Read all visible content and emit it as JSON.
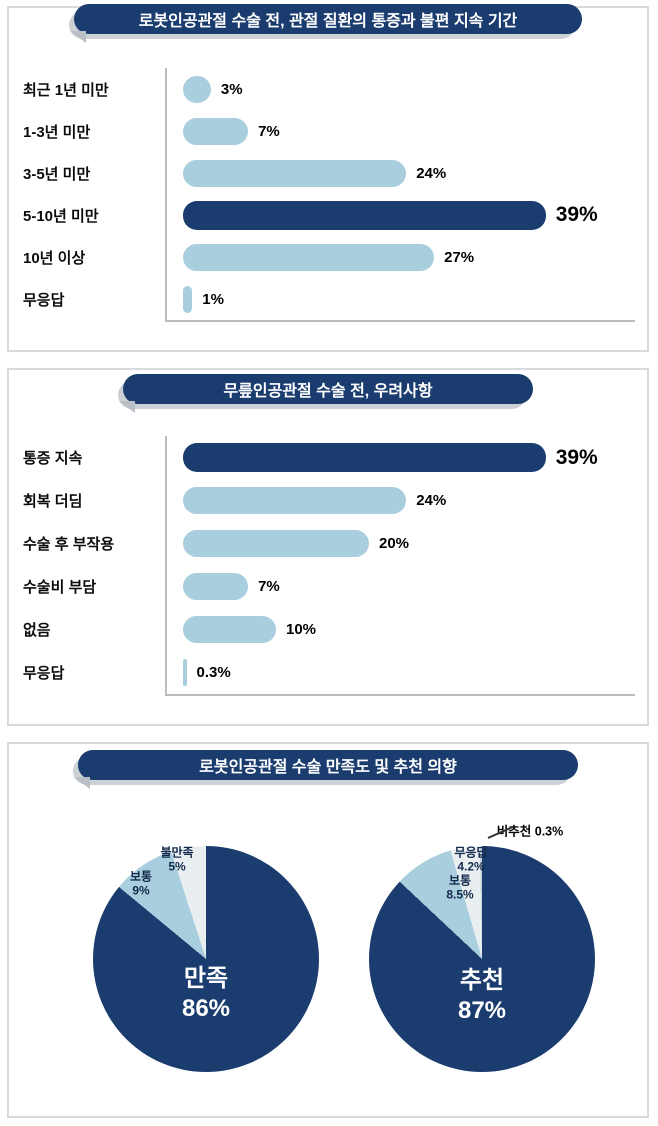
{
  "colors": {
    "navy": "#1b3c6e",
    "light_blue": "#a9cedd",
    "pale": "#e9eef1",
    "sliver": "#c9d4db",
    "axis": "#b7bcc1",
    "banner_shadow": "#ccd1d6"
  },
  "chart_data": [
    {
      "type": "bar",
      "orientation": "horizontal",
      "title": "로봇인공관절 수술 전, 관절 질환의 통증과 불편 지속 기간",
      "categories": [
        "최근 1년 미만",
        "1-3년 미만",
        "3-5년 미만",
        "5-10년 미만",
        "10년 이상",
        "무응답"
      ],
      "values": [
        3,
        7,
        24,
        39,
        27,
        1
      ],
      "value_labels": [
        "3%",
        "7%",
        "24%",
        "39%",
        "27%",
        "1%"
      ],
      "highlight_index": 3,
      "unit": "%",
      "xlim": [
        0,
        42
      ],
      "grid": false,
      "legend": false
    },
    {
      "type": "bar",
      "orientation": "horizontal",
      "title": "무릎인공관절 수술 전, 우려사항",
      "categories": [
        "통증 지속",
        "회복 더딤",
        "수술 후 부작용",
        "수술비 부담",
        "없음",
        "무응답"
      ],
      "values": [
        39,
        24,
        20,
        7,
        10,
        0.3
      ],
      "value_labels": [
        "39%",
        "24%",
        "20%",
        "7%",
        "10%",
        "0.3%"
      ],
      "highlight_index": 0,
      "unit": "%",
      "xlim": [
        0,
        42
      ],
      "grid": false,
      "legend": false
    },
    {
      "type": "pie",
      "title": "로봇인공관절 수술 만족도 및 추천 의향",
      "pies": [
        {
          "name": "만족도",
          "slices": [
            {
              "label": "만족",
              "value": 86,
              "pct_label": "86%",
              "color_key": "navy"
            },
            {
              "label": "보통",
              "value": 9,
              "pct_label": "9%",
              "color_key": "light_blue"
            },
            {
              "label": "불만족",
              "value": 5,
              "pct_label": "5%",
              "color_key": "pale"
            }
          ]
        },
        {
          "name": "추천 의향",
          "slices": [
            {
              "label": "추천",
              "value": 87,
              "pct_label": "87%",
              "color_key": "navy"
            },
            {
              "label": "보통",
              "value": 8.5,
              "pct_label": "8.5%",
              "color_key": "light_blue"
            },
            {
              "label": "무응답",
              "value": 4.2,
              "pct_label": "4.2%",
              "color_key": "pale"
            },
            {
              "label": "비추천",
              "value": 0.3,
              "pct_label": "0.3%",
              "color_key": "sliver"
            }
          ]
        }
      ]
    }
  ]
}
